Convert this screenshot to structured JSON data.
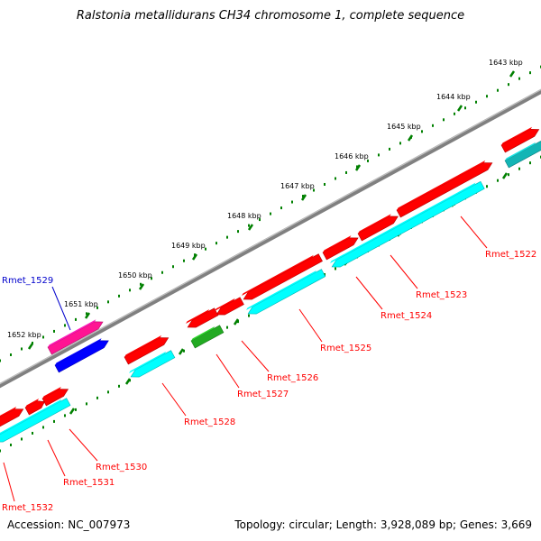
{
  "title": "Ralstonia metallidurans CH34 chromosome 1, complete sequence",
  "footer": {
    "accession": "Accession: NC_007973",
    "summary": "Topology: circular; Length: 3,928,089 bp; Genes: 3,669"
  },
  "colors": {
    "backbone": "#808080",
    "forward_cds": "#ff0000",
    "reverse_cds": "#00ffff",
    "ticks": "#008000",
    "label_red": "#ff0000",
    "label_blue": "#0000cc",
    "pink": "#ff1493",
    "blue": "#0000ff",
    "green": "#22aa22"
  },
  "ticks": [
    "1643 kbp",
    "1644 kbp",
    "1645 kbp",
    "1646 kbp",
    "1647 kbp",
    "1648 kbp",
    "1649 kbp",
    "1650 kbp",
    "1651 kbp",
    "1652 kbp"
  ],
  "genes": [
    "Rmet_1522",
    "Rmet_1523",
    "Rmet_1524",
    "Rmet_1525",
    "Rmet_1526",
    "Rmet_1527",
    "Rmet_1528",
    "Rmet_1529",
    "Rmet_1530",
    "Rmet_1531",
    "Rmet_1532"
  ]
}
